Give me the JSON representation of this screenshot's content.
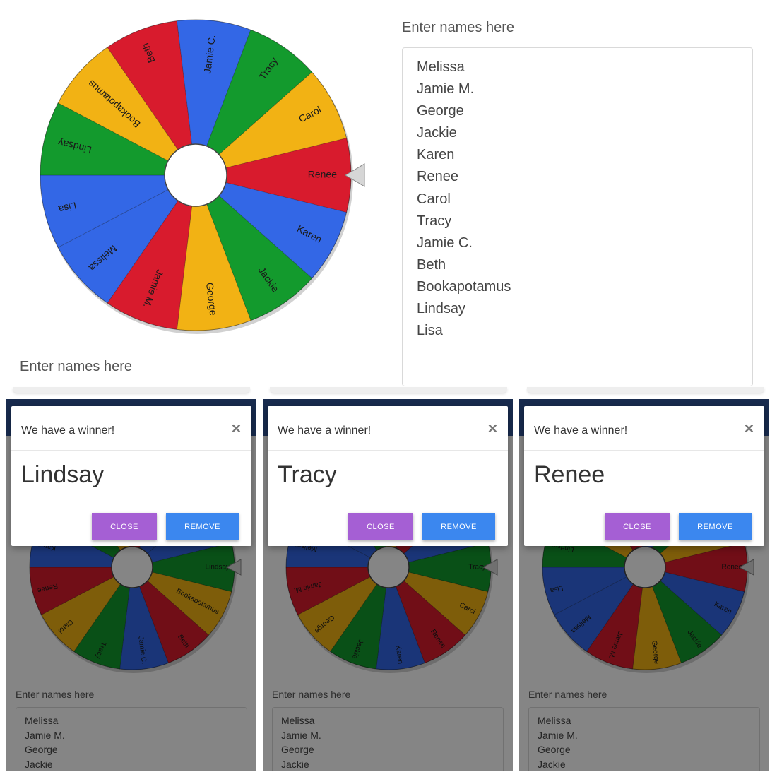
{
  "colors": {
    "red": "#d81b2d",
    "blue": "#3367e6",
    "green": "#139a2d",
    "yellow": "#f2b214",
    "header": "#2f5496",
    "close_btn": "#a55fd4",
    "remove_btn": "#3b87ef"
  },
  "top": {
    "names_label": "Enter names here",
    "names": [
      "Melissa",
      "Jamie M.",
      "George",
      "Jackie",
      "Karen",
      "Renee",
      "Carol",
      "Tracy",
      "Jamie C.",
      "Beth",
      "Bookapotamus",
      "Lindsay",
      "Lisa"
    ],
    "lower_names_label": "Enter names here"
  },
  "wheel": {
    "segments": [
      {
        "name": "Renee",
        "color": "red"
      },
      {
        "name": "Karen",
        "color": "blue"
      },
      {
        "name": "Jackie",
        "color": "green"
      },
      {
        "name": "George",
        "color": "yellow"
      },
      {
        "name": "Jamie M.",
        "color": "red"
      },
      {
        "name": "Melissa",
        "color": "blue"
      },
      {
        "name": "Lisa",
        "color": "blue"
      },
      {
        "name": "Lindsay",
        "color": "green"
      },
      {
        "name": "Bookapotamus",
        "color": "yellow"
      },
      {
        "name": "Beth",
        "color": "red"
      },
      {
        "name": "Jamie C.",
        "color": "blue"
      },
      {
        "name": "Tracy",
        "color": "green"
      },
      {
        "name": "Carol",
        "color": "yellow"
      }
    ],
    "pointer_icon": "triangle-pointer-icon"
  },
  "panels": [
    {
      "modal_title": "We have a winner!",
      "winner": "Lindsay",
      "close_label": "CLOSE",
      "remove_label": "REMOVE",
      "close_icon": "close-x-icon",
      "names_label": "Enter names here",
      "names": [
        "Melissa",
        "Jamie M.",
        "George",
        "Jackie"
      ]
    },
    {
      "modal_title": "We have a winner!",
      "winner": "Tracy",
      "close_label": "CLOSE",
      "remove_label": "REMOVE",
      "close_icon": "close-x-icon",
      "names_label": "Enter names here",
      "names": [
        "Melissa",
        "Jamie M.",
        "George",
        "Jackie"
      ]
    },
    {
      "modal_title": "We have a winner!",
      "winner": "Renee",
      "close_label": "CLOSE",
      "remove_label": "REMOVE",
      "close_icon": "close-x-icon",
      "names_label": "Enter names here",
      "names": [
        "Melissa",
        "Jamie M.",
        "George",
        "Jackie"
      ]
    }
  ]
}
